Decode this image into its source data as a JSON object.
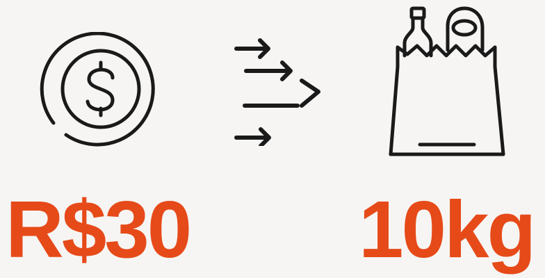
{
  "money": {
    "icon": "dollar-coin-icon",
    "amount": "R$30"
  },
  "exchange": {
    "icon": "arrows-right-icon"
  },
  "goods": {
    "icon": "grocery-bag-icon",
    "amount": "10kg"
  },
  "colors": {
    "background": "#f6f5f3",
    "accent": "#e64a19",
    "icon_stroke": "#1a1a1a"
  }
}
